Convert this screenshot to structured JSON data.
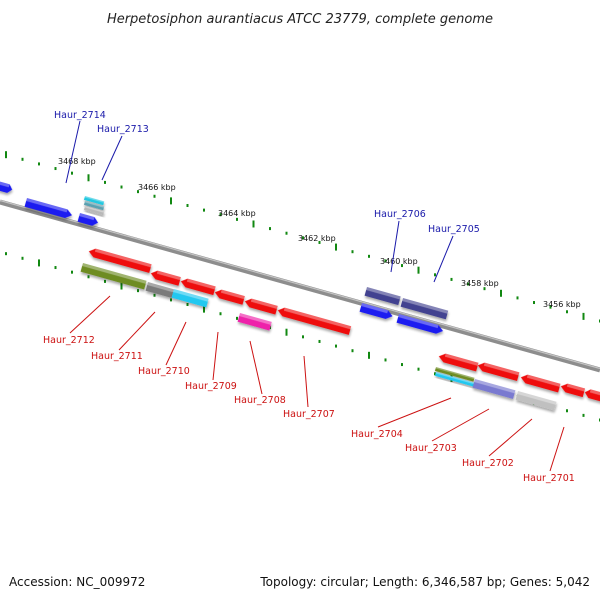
{
  "title": "Herpetosiphon aurantiacus ATCC 23779, complete genome",
  "footer": {
    "accession": "Accession: NC_009972",
    "summary": "Topology: circular; Length: 6,346,587 bp; Genes: 5,042"
  },
  "colors": {
    "backbone": "#8a8a8a",
    "tick": "#118811",
    "forward_label": "#1a1aaa",
    "reverse_label": "#cc1111"
  },
  "kbp_labels": [
    "3468 kbp",
    "3466 kbp",
    "3464 kbp",
    "3462 kbp",
    "3460 kbp",
    "3458 kbp",
    "3456 kbp"
  ],
  "genes": [
    {
      "id": "Haur_2714",
      "strand": "forward"
    },
    {
      "id": "Haur_2713",
      "strand": "forward"
    },
    {
      "id": "Haur_2706",
      "strand": "forward"
    },
    {
      "id": "Haur_2705",
      "strand": "forward"
    },
    {
      "id": "Haur_2712",
      "strand": "reverse"
    },
    {
      "id": "Haur_2711",
      "strand": "reverse"
    },
    {
      "id": "Haur_2710",
      "strand": "reverse"
    },
    {
      "id": "Haur_2709",
      "strand": "reverse"
    },
    {
      "id": "Haur_2708",
      "strand": "reverse"
    },
    {
      "id": "Haur_2707",
      "strand": "reverse"
    },
    {
      "id": "Haur_2704",
      "strand": "reverse"
    },
    {
      "id": "Haur_2703",
      "strand": "reverse"
    },
    {
      "id": "Haur_2702",
      "strand": "reverse"
    },
    {
      "id": "Haur_2701",
      "strand": "reverse"
    }
  ]
}
